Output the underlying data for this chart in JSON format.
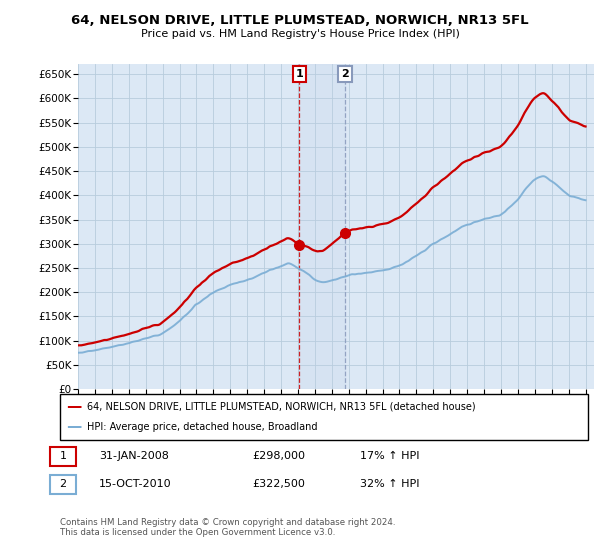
{
  "title": "64, NELSON DRIVE, LITTLE PLUMSTEAD, NORWICH, NR13 5FL",
  "subtitle": "Price paid vs. HM Land Registry's House Price Index (HPI)",
  "ylim": [
    0,
    670000
  ],
  "yticks": [
    0,
    50000,
    100000,
    150000,
    200000,
    250000,
    300000,
    350000,
    400000,
    450000,
    500000,
    550000,
    600000,
    650000
  ],
  "ytick_labels": [
    "£0",
    "£50K",
    "£100K",
    "£150K",
    "£200K",
    "£250K",
    "£300K",
    "£350K",
    "£400K",
    "£450K",
    "£500K",
    "£550K",
    "£600K",
    "£650K"
  ],
  "hpi_color": "#7aadd4",
  "price_color": "#cc0000",
  "bg_color": "#ffffff",
  "plot_bg": "#dce8f5",
  "grid_color": "#b8ccdd",
  "sale1_x": 2008.08,
  "sale1_price": 298000,
  "sale2_x": 2010.79,
  "sale2_price": 322500,
  "legend_line1": "64, NELSON DRIVE, LITTLE PLUMSTEAD, NORWICH, NR13 5FL (detached house)",
  "legend_line2": "HPI: Average price, detached house, Broadland",
  "annotation1_label": "1",
  "annotation1_date": "31-JAN-2008",
  "annotation1_price": "£298,000",
  "annotation1_hpi": "17% ↑ HPI",
  "annotation2_label": "2",
  "annotation2_date": "15-OCT-2010",
  "annotation2_price": "£322,500",
  "annotation2_hpi": "32% ↑ HPI",
  "footer": "Contains HM Land Registry data © Crown copyright and database right 2024.\nThis data is licensed under the Open Government Licence v3.0."
}
